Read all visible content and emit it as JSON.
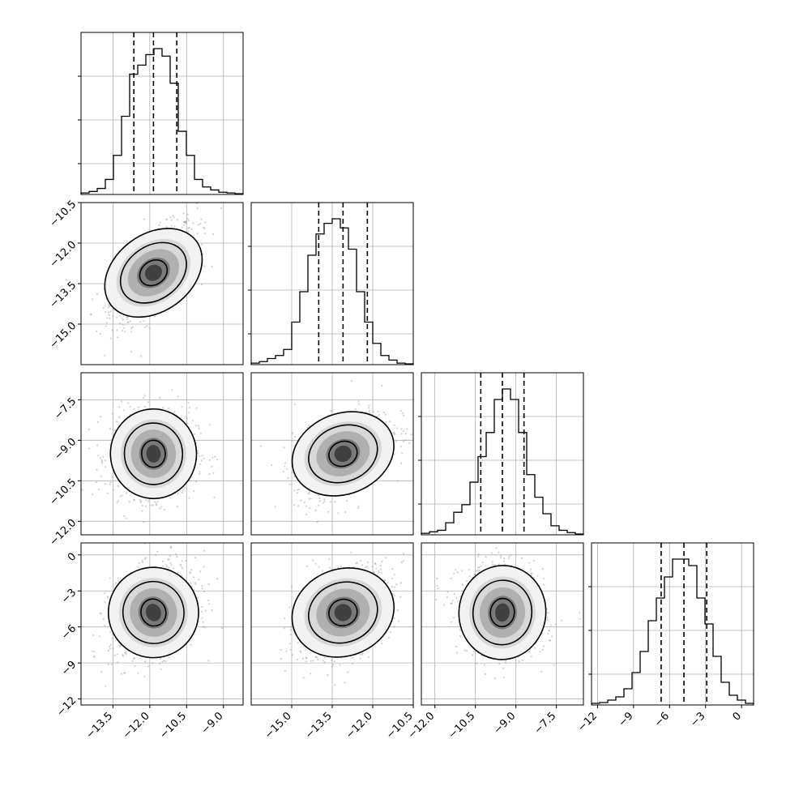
{
  "chart_data": {
    "type": "corner",
    "parameters": [
      {
        "range": [
          -14.8,
          -8.2
        ],
        "ticks": [
          -13.5,
          -12.0,
          -10.5,
          -9.0
        ],
        "tick_labels": [
          "−13.5",
          "−12.0",
          "−10.5",
          "−9.0"
        ],
        "quantiles": [
          -12.65,
          -11.85,
          -10.9
        ],
        "histogram": [
          0.01,
          0.02,
          0.04,
          0.1,
          0.26,
          0.52,
          0.8,
          0.86,
          0.93,
          0.97,
          0.92,
          0.74,
          0.42,
          0.26,
          0.1,
          0.05,
          0.03,
          0.015,
          0.01,
          0.005
        ]
      },
      {
        "range": [
          -16.5,
          -10.5
        ],
        "ticks": [
          -15.0,
          -13.5,
          -12.0,
          -10.5
        ],
        "tick_labels": [
          "−15.0",
          "−13.5",
          "−12.0",
          "−10.5"
        ],
        "quantiles": [
          -14.0,
          -13.1,
          -12.2
        ],
        "histogram": [
          0.01,
          0.02,
          0.04,
          0.06,
          0.1,
          0.28,
          0.48,
          0.72,
          0.86,
          0.93,
          0.96,
          0.9,
          0.76,
          0.48,
          0.28,
          0.14,
          0.06,
          0.03,
          0.01,
          0.005
        ]
      },
      {
        "range": [
          -12.5,
          -6.5
        ],
        "ticks": [
          -12.0,
          -10.5,
          -9.0,
          -7.5
        ],
        "tick_labels": [
          "−12.0",
          "−10.5",
          "−9.0",
          "−7.5"
        ],
        "quantiles": [
          -10.3,
          -9.5,
          -8.7
        ],
        "histogram": [
          0.01,
          0.02,
          0.03,
          0.08,
          0.15,
          0.2,
          0.35,
          0.52,
          0.68,
          0.9,
          0.97,
          0.9,
          0.68,
          0.4,
          0.25,
          0.14,
          0.06,
          0.03,
          0.015,
          0.005
        ]
      },
      {
        "range": [
          -12.5,
          1.0
        ],
        "ticks": [
          -12,
          -9,
          -6,
          -3,
          0
        ],
        "tick_labels": [
          "−12",
          "−9",
          "−6",
          "−3",
          "0"
        ],
        "quantiles": [
          -6.7,
          -4.8,
          -2.9
        ],
        "histogram": [
          0.01,
          0.015,
          0.03,
          0.05,
          0.1,
          0.2,
          0.33,
          0.52,
          0.66,
          0.79,
          0.9,
          0.9,
          0.86,
          0.66,
          0.5,
          0.3,
          0.14,
          0.06,
          0.03,
          0.01
        ]
      }
    ],
    "correlations": {
      "1,0": 0.65,
      "2,0": 0.05,
      "2,1": 0.45,
      "3,0": 0.3,
      "3,1": 0.4,
      "3,2": -0.1
    },
    "contour_levels": [
      0.4,
      0.9,
      1.8
    ],
    "grid": true,
    "quantile_style": "dashed vertical lines"
  }
}
